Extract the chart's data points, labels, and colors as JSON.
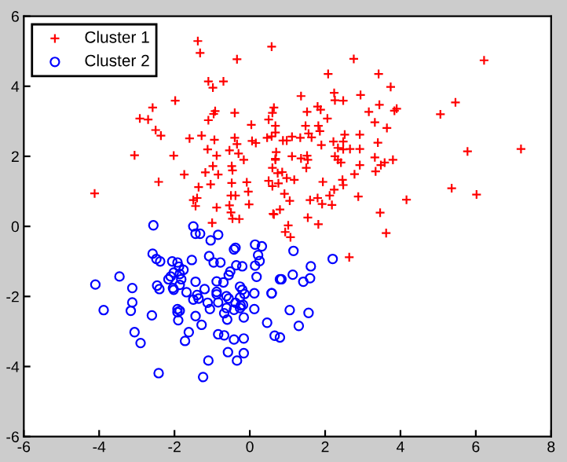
{
  "chart_data": {
    "type": "scatter",
    "xlim": [
      -6,
      8
    ],
    "ylim": [
      -6,
      6
    ],
    "xticks": [
      -6,
      -4,
      -2,
      0,
      2,
      4,
      6,
      8
    ],
    "yticks": [
      -6,
      -4,
      -2,
      0,
      2,
      4,
      6
    ],
    "grid": false,
    "legend": "top left",
    "series": [
      {
        "name": "Cluster 1",
        "color": "#ff0000",
        "marker": "cross",
        "x": [
          -1.38,
          -1.32,
          0.58,
          -0.34,
          -1.1,
          -0.7,
          -0.98,
          -1.98,
          -2.58,
          -2.92,
          -2.7,
          -0.92,
          -0.96,
          -0.4,
          -1.1,
          0.64,
          0.6,
          0.04,
          0.5,
          0.68,
          0.68,
          -2.5,
          -2.36,
          -1.6,
          -1.28,
          -0.94,
          -0.4,
          -0.34,
          0.06,
          0.16,
          0.46,
          0.58,
          -3.06,
          -2.02,
          -1.12,
          -0.88,
          -0.54,
          -0.3,
          -0.16,
          0.7,
          0.68,
          -0.98,
          -0.48,
          -0.46,
          0.6,
          0.74,
          0.5,
          0.6,
          -1.74,
          -1.18,
          -0.84,
          -2.42,
          -1.36,
          -1.04,
          -0.48,
          -0.08,
          -4.12,
          -1.5,
          -1.4,
          -0.5,
          -0.38,
          -0.04,
          -1.44,
          -0.88,
          -0.54,
          -0.02,
          -0.5,
          -0.46,
          -0.28,
          0.62,
          -1.0,
          2.76,
          6.22,
          2.08,
          3.42,
          3.74,
          2.24,
          2.94,
          1.36,
          2.26,
          2.48,
          5.46,
          1.8,
          1.88,
          3.44,
          1.52,
          3.16,
          3.9,
          3.84,
          5.06,
          2.06,
          3.32,
          3.64,
          1.48,
          1.82,
          1.86,
          1.56,
          2.52,
          2.92,
          1.12,
          1.34,
          1.64,
          0.88,
          0.98,
          2.22,
          2.48,
          3.4,
          1.9,
          2.34,
          2.48,
          2.66,
          2.92,
          5.78,
          7.2,
          1.12,
          1.36,
          1.52,
          1.54,
          2.26,
          2.34,
          3.32,
          3.8,
          0.68,
          3.58,
          3.48,
          1.5,
          2.42,
          2.92,
          2.78,
          3.34,
          0.86,
          0.98,
          1.18,
          0.76,
          2.46,
          1.94,
          2.48,
          5.36,
          6.02,
          2.24,
          0.92,
          2.12,
          2.88,
          4.16,
          1.06,
          1.6,
          1.8,
          1.92,
          2.18,
          0.64,
          0.8,
          3.46,
          1.54,
          1.02,
          1.82,
          3.62,
          0.94,
          1.08,
          2.64
        ],
        "values": [
          5.29,
          4.95,
          5.13,
          4.77,
          4.14,
          4.14,
          3.96,
          3.59,
          3.39,
          3.08,
          3.05,
          3.29,
          3.21,
          3.24,
          3.03,
          3.39,
          3.24,
          2.9,
          3.05,
          2.87,
          2.68,
          2.75,
          2.59,
          2.51,
          2.59,
          2.47,
          2.53,
          2.35,
          2.44,
          2.38,
          2.53,
          2.57,
          2.03,
          2.02,
          2.2,
          2.02,
          2.17,
          2.08,
          1.9,
          2.12,
          1.9,
          1.72,
          1.72,
          1.6,
          1.67,
          1.52,
          1.3,
          1.15,
          1.48,
          1.54,
          1.48,
          1.27,
          1.12,
          1.2,
          1.24,
          1.26,
          0.94,
          0.75,
          0.81,
          0.88,
          0.88,
          0.99,
          0.58,
          0.54,
          0.6,
          0.63,
          0.4,
          0.22,
          0.21,
          0.36,
          0.1,
          4.78,
          4.74,
          4.35,
          4.35,
          3.98,
          3.81,
          3.75,
          3.72,
          3.6,
          3.59,
          3.54,
          3.42,
          3.33,
          3.47,
          3.27,
          3.27,
          3.36,
          3.3,
          3.2,
          3.08,
          2.97,
          2.81,
          2.87,
          2.87,
          2.72,
          2.65,
          2.62,
          2.62,
          2.56,
          2.53,
          2.54,
          2.45,
          2.45,
          2.42,
          2.42,
          2.39,
          2.32,
          2.24,
          2.2,
          2.21,
          2.21,
          2.14,
          2.21,
          2.0,
          1.94,
          2.02,
          1.9,
          2.0,
          1.9,
          1.97,
          1.9,
          1.93,
          1.82,
          1.75,
          1.67,
          1.82,
          1.75,
          1.49,
          1.57,
          1.55,
          1.38,
          1.33,
          1.23,
          1.33,
          1.27,
          1.18,
          1.09,
          0.91,
          1.05,
          0.93,
          0.88,
          0.85,
          0.76,
          0.73,
          0.75,
          0.81,
          0.64,
          0.61,
          0.34,
          0.48,
          0.39,
          0.25,
          0.03,
          0.06,
          -0.19,
          -0.16,
          -0.31,
          -0.88
        ]
      },
      {
        "name": "Cluster 2",
        "color": "#0000ff",
        "marker": "circle",
        "x": [
          1.16,
          2.2,
          1.62,
          1.14,
          0.84,
          1.6,
          1.42,
          0.58,
          1.06,
          1.56,
          0.46,
          1.3,
          0.66,
          0.8,
          -2.56,
          -1.5,
          -1.44,
          -1.32,
          -0.84,
          -1.04,
          -0.42,
          -0.38,
          0.14,
          0.32,
          0.22,
          0.26,
          0.14,
          -2.58,
          -2.48,
          -2.38,
          -1.08,
          -1.54,
          -2.06,
          -1.92,
          -1.88,
          -2.02,
          -1.76,
          -1.86,
          -1.82,
          -2.1,
          -2.16,
          -0.96,
          -0.78,
          -0.36,
          -0.2,
          -0.52,
          -0.56,
          0.18,
          -4.1,
          -3.46,
          -3.12,
          -2.46,
          -2.4,
          -2.04,
          -2.02,
          -1.86,
          -1.44,
          -1.2,
          -0.88,
          -0.88,
          -0.88,
          -0.7,
          -0.26,
          -0.2,
          -0.14,
          0.12,
          0.8,
          -1.68,
          -1.4,
          -1.36,
          -1.5,
          -0.62,
          -0.56,
          -0.26,
          -0.84,
          -1.12,
          -0.38,
          -0.24,
          -0.18,
          -0.62,
          -0.26,
          -0.42,
          -3.12,
          -3.88,
          -1.92,
          -1.86,
          -1.92,
          -1.06,
          -0.68,
          -0.6,
          -0.16,
          0.12,
          0.58,
          -3.16,
          -1.44,
          -1.9,
          -2.6,
          -1.28,
          -3.06,
          -1.62,
          -0.84,
          -0.68,
          -0.42,
          -0.16,
          -1.72,
          -2.9,
          -0.58,
          -0.16,
          -1.1,
          -0.34,
          -2.42,
          -1.24
        ],
        "values": [
          -0.7,
          -0.93,
          -1.14,
          -1.38,
          -1.51,
          -1.48,
          -1.58,
          -1.91,
          -2.39,
          -2.47,
          -2.75,
          -2.84,
          -3.12,
          -3.17,
          0.03,
          0.0,
          -0.21,
          -0.21,
          -0.24,
          -0.4,
          -0.66,
          -0.61,
          -0.52,
          -0.57,
          -0.82,
          -0.99,
          -1.12,
          -0.78,
          -0.93,
          -1.0,
          -0.85,
          -0.96,
          -1.0,
          -1.03,
          -1.15,
          -1.32,
          -1.24,
          -1.36,
          -1.51,
          -1.43,
          -1.51,
          -1.03,
          -1.03,
          -1.11,
          -1.14,
          -1.29,
          -1.39,
          -1.44,
          -1.66,
          -1.43,
          -1.76,
          -1.69,
          -1.79,
          -1.76,
          -1.81,
          -1.67,
          -1.58,
          -1.79,
          -1.57,
          -1.87,
          -1.94,
          -1.6,
          -1.72,
          -1.81,
          -1.93,
          -1.91,
          -1.51,
          -1.88,
          -1.96,
          -2.06,
          -2.09,
          -1.99,
          -2.06,
          -2.03,
          -2.17,
          -2.18,
          -2.18,
          -2.26,
          -2.24,
          -2.33,
          -2.33,
          -2.38,
          -2.17,
          -2.39,
          -2.36,
          -2.41,
          -2.45,
          -2.36,
          -2.48,
          -2.66,
          -2.6,
          -2.36,
          -1.91,
          -2.41,
          -2.56,
          -2.68,
          -2.54,
          -2.81,
          -3.02,
          -3.02,
          -3.08,
          -3.11,
          -3.23,
          -3.2,
          -3.27,
          -3.33,
          -3.59,
          -3.62,
          -3.83,
          -3.83,
          -4.19,
          -4.3
        ]
      }
    ]
  }
}
